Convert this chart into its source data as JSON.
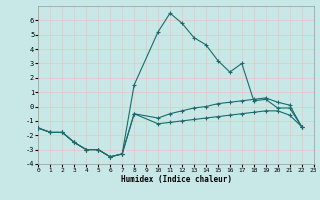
{
  "xlabel": "Humidex (Indice chaleur)",
  "bg_color": "#c8e8e8",
  "grid_color": "#e8c8c8",
  "line_color": "#1a6b6b",
  "xlim": [
    0,
    23
  ],
  "ylim": [
    -4,
    7
  ],
  "yticks": [
    -4,
    -3,
    -2,
    -1,
    0,
    1,
    2,
    3,
    4,
    5,
    6
  ],
  "xticks": [
    0,
    1,
    2,
    3,
    4,
    5,
    6,
    7,
    8,
    9,
    10,
    11,
    12,
    13,
    14,
    15,
    16,
    17,
    18,
    19,
    20,
    21,
    22,
    23
  ],
  "line1_x": [
    0,
    1,
    2,
    3,
    4,
    5,
    6,
    7,
    8,
    10,
    11,
    12,
    13,
    14,
    15,
    16,
    17,
    18,
    19,
    20,
    21,
    22
  ],
  "line1_y": [
    -1.5,
    -1.8,
    -1.8,
    -2.5,
    -3.0,
    -3.0,
    -3.5,
    -3.3,
    1.5,
    5.2,
    6.5,
    5.8,
    4.8,
    4.3,
    3.2,
    2.4,
    3.0,
    0.4,
    0.5,
    -0.1,
    -0.1,
    -1.4
  ],
  "line2_x": [
    0,
    1,
    2,
    3,
    4,
    5,
    6,
    7,
    8,
    10,
    11,
    12,
    13,
    14,
    15,
    16,
    17,
    18,
    19,
    20,
    21,
    22
  ],
  "line2_y": [
    -1.5,
    -1.8,
    -1.8,
    -2.5,
    -3.0,
    -3.0,
    -3.5,
    -3.3,
    -0.5,
    -0.8,
    -0.5,
    -0.3,
    -0.1,
    0.0,
    0.2,
    0.3,
    0.4,
    0.5,
    0.6,
    0.3,
    0.1,
    -1.4
  ],
  "line3_x": [
    0,
    1,
    2,
    3,
    4,
    5,
    6,
    7,
    8,
    10,
    11,
    12,
    13,
    14,
    15,
    16,
    17,
    18,
    19,
    20,
    21,
    22
  ],
  "line3_y": [
    -1.5,
    -1.8,
    -1.8,
    -2.5,
    -3.0,
    -3.0,
    -3.5,
    -3.3,
    -0.5,
    -1.2,
    -1.1,
    -1.0,
    -0.9,
    -0.8,
    -0.7,
    -0.6,
    -0.5,
    -0.4,
    -0.3,
    -0.3,
    -0.6,
    -1.4
  ]
}
